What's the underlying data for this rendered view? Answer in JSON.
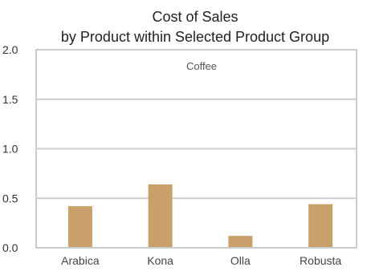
{
  "chart_data": {
    "type": "bar",
    "title": "Cost of Sales",
    "subtitle": "by Product within Selected Product Group",
    "panel_label": "Coffee",
    "categories": [
      "Arabica",
      "Kona",
      "Olla",
      "Robusta"
    ],
    "values": [
      0.42,
      0.64,
      0.12,
      0.44
    ],
    "ylim": [
      0,
      2
    ],
    "yticks": [
      "0.0",
      "0.5",
      "1.0",
      "1.5",
      "2.0"
    ],
    "xlabel": "",
    "ylabel": "",
    "grid": true,
    "colors": {
      "bar": "#c9a06a",
      "grid": "#cccccc",
      "frame": "#cccccc"
    }
  }
}
